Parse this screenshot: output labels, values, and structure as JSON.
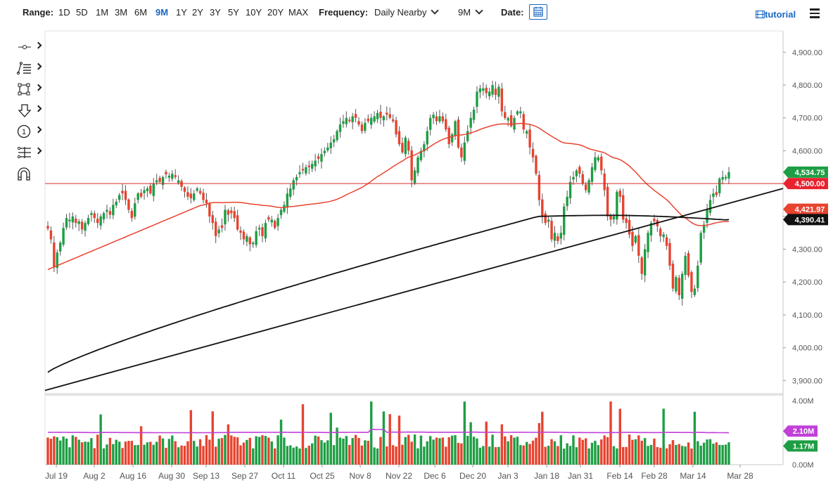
{
  "toolbar": {
    "range_label": "Range:",
    "ranges": [
      "1D",
      "5D",
      "1M",
      "3M",
      "6M",
      "9M",
      "1Y",
      "2Y",
      "3Y",
      "5Y",
      "10Y",
      "20Y",
      "MAX"
    ],
    "active_range": "9M",
    "frequency_label": "Frequency:",
    "frequency_value": "Daily Nearby",
    "period_value": "9M",
    "date_label": "Date:",
    "tutorial_label": "tutorial"
  },
  "drawing_tools": [
    "crosshair-icon",
    "trend-lines-icon",
    "shapes-icon",
    "arrow-down-icon",
    "counter-icon",
    "fibonacci-icon",
    "magnet-icon"
  ],
  "colors": {
    "up": "#1e9e44",
    "down": "#e8432f",
    "ma_fast": "#e8432f",
    "ma_slow": "#111111",
    "volume_avg": "#c040d8",
    "level_line": "#d62b2b",
    "accent": "#1a67c2"
  },
  "chart_data": {
    "type": "candlestick",
    "x_tick_labels": [
      "Jul 19",
      "Aug 2",
      "Aug 16",
      "Aug 30",
      "Sep 13",
      "Sep 27",
      "Oct 11",
      "Oct 25",
      "Nov 8",
      "Nov 22",
      "Dec 6",
      "Dec 20",
      "Jan 3",
      "Jan 18",
      "Jan 31",
      "Feb 14",
      "Feb 28",
      "Mar 14",
      "Mar 28"
    ],
    "price_ticks": [
      "4,900.00",
      "4,800.00",
      "4,700.00",
      "4,600.00",
      "4,500.00",
      "4,400.00",
      "4,300.00",
      "4,200.00",
      "4,100.00",
      "4,000.00",
      "3,900.00"
    ],
    "price_tick_values": [
      4900,
      4800,
      4700,
      4600,
      4500,
      4400,
      4300,
      4200,
      4100,
      4000,
      3900
    ],
    "ylim": [
      3860,
      4965
    ],
    "volume_ticks": [
      "4.00M",
      "0.00M"
    ],
    "volume_tick_values": [
      4.0,
      0.0
    ],
    "volume_ylim": [
      0,
      4.0
    ],
    "price_labels": [
      {
        "text": "4,534.75",
        "value": 4534.75,
        "color": "#1e9e44"
      },
      {
        "text": "4,500.00",
        "value": 4500.0,
        "color": "#e8232f"
      },
      {
        "text": "4,421.97",
        "value": 4421.97,
        "color": "#e8432f"
      },
      {
        "text": "4,390.41",
        "value": 4390.41,
        "color": "#111111"
      }
    ],
    "volume_labels": [
      {
        "text": "2.10M",
        "value": 2.1,
        "color": "#c040d8"
      },
      {
        "text": "1.17M",
        "value": 1.17,
        "color": "#1e9e44"
      }
    ],
    "horizontal_line": 4500,
    "closes": [
      4363,
      4330,
      4245,
      4290,
      4320,
      4365,
      4395,
      4390,
      4400,
      4380,
      4385,
      4360,
      4380,
      4395,
      4410,
      4395,
      4380,
      4400,
      4410,
      4420,
      4405,
      4435,
      4445,
      4465,
      4470,
      4450,
      4420,
      4395,
      4440,
      4470,
      4460,
      4480,
      4485,
      4470,
      4500,
      4510,
      4505,
      4520,
      4528,
      4524,
      4530,
      4520,
      4510,
      4490,
      4475,
      4460,
      4455,
      4470,
      4485,
      4470,
      4450,
      4440,
      4400,
      4380,
      4340,
      4360,
      4365,
      4420,
      4405,
      4410,
      4395,
      4360,
      4350,
      4330,
      4340,
      4315,
      4320,
      4355,
      4365,
      4340,
      4380,
      4390,
      4390,
      4365,
      4395,
      4420,
      4435,
      4470,
      4485,
      4510,
      4520,
      4535,
      4540,
      4550,
      4550,
      4560,
      4570,
      4575,
      4590,
      4600,
      4610,
      4625,
      4635,
      4660,
      4680,
      4690,
      4700,
      4690,
      4705,
      4700,
      4680,
      4660,
      4685,
      4690,
      4700,
      4705,
      4715,
      4700,
      4705,
      4710,
      4700,
      4690,
      4650,
      4620,
      4595,
      4640,
      4600,
      4510,
      4540,
      4580,
      4600,
      4620,
      4660,
      4700,
      4710,
      4690,
      4705,
      4690,
      4665,
      4620,
      4650,
      4690,
      4610,
      4580,
      4625,
      4660,
      4700,
      4725,
      4780,
      4790,
      4790,
      4775,
      4780,
      4800,
      4770,
      4795,
      4720,
      4700,
      4700,
      4675,
      4700,
      4720,
      4720,
      4665,
      4660,
      4610,
      4580,
      4530,
      4450,
      4400,
      4380,
      4390,
      4330,
      4350,
      4325,
      4350,
      4430,
      4460,
      4505,
      4520,
      4540,
      4530,
      4500,
      4480,
      4510,
      4550,
      4580,
      4580,
      4540,
      4480,
      4400,
      4390,
      4400,
      4475,
      4460,
      4390,
      4380,
      4345,
      4310,
      4340,
      4280,
      4225,
      4300,
      4350,
      4380,
      4385,
      4370,
      4340,
      4345,
      4310,
      4250,
      4180,
      4215,
      4160,
      4225,
      4280,
      4220,
      4170,
      4180,
      4250,
      4350,
      4375,
      4420,
      4450,
      4470,
      4465,
      4515,
      4520,
      4520,
      4535
    ]
  }
}
